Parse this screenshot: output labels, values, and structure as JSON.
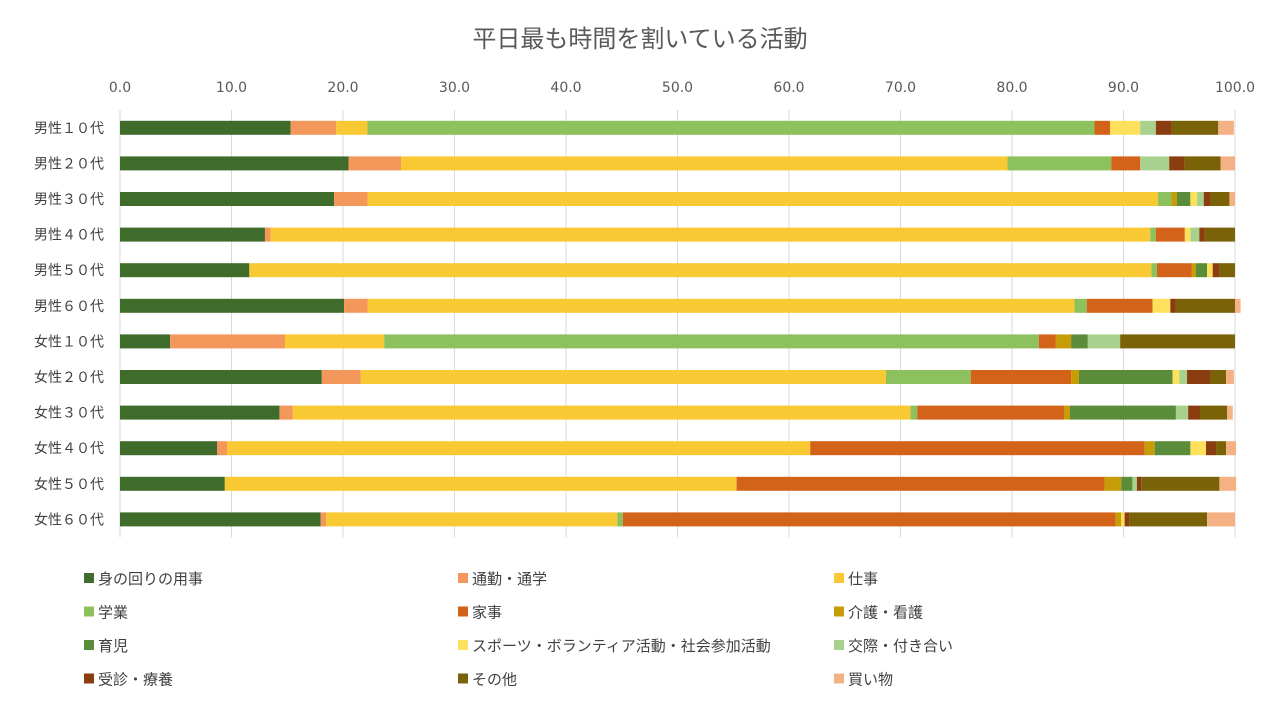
{
  "chart_data": {
    "type": "bar",
    "orientation": "horizontal",
    "stacked": true,
    "title": "平日最も時間を割いている活動",
    "xlim": [
      0,
      100
    ],
    "xticks": [
      "0.0",
      "10.0",
      "20.0",
      "30.0",
      "40.0",
      "50.0",
      "60.0",
      "70.0",
      "80.0",
      "90.0",
      "100.0"
    ],
    "xaxis_position": "top",
    "grid": true,
    "legend_position": "bottom",
    "categories": [
      "男性１０代",
      "男性２０代",
      "男性３０代",
      "男性４０代",
      "男性５０代",
      "男性６０代",
      "女性１０代",
      "女性２０代",
      "女性３０代",
      "女性４０代",
      "女性５０代",
      "女性６０代"
    ],
    "series": [
      {
        "name": "身の回りの用事",
        "color": "#3f6b2b",
        "values": [
          15.3,
          20.5,
          19.2,
          13.0,
          11.6,
          20.1,
          4.5,
          18.1,
          14.3,
          8.7,
          9.4,
          18.0
        ]
      },
      {
        "name": "通勤・通学",
        "color": "#f4975b",
        "values": [
          4.1,
          4.7,
          3.0,
          0.5,
          0.0,
          2.1,
          10.3,
          3.5,
          1.2,
          0.9,
          0.0,
          0.5
        ]
      },
      {
        "name": "仕事",
        "color": "#f9c933",
        "values": [
          2.8,
          54.4,
          70.9,
          78.9,
          80.9,
          63.4,
          8.9,
          47.1,
          55.4,
          52.3,
          45.9,
          26.1
        ]
      },
      {
        "name": "学業",
        "color": "#8cc15e",
        "values": [
          65.2,
          9.3,
          1.2,
          0.5,
          0.5,
          1.1,
          58.7,
          7.6,
          0.6,
          0.0,
          0.0,
          0.5
        ]
      },
      {
        "name": "家事",
        "color": "#d4631a",
        "values": [
          1.4,
          2.6,
          0.0,
          2.6,
          3.1,
          5.9,
          1.5,
          9.0,
          13.2,
          30.0,
          33.0,
          44.2
        ]
      },
      {
        "name": "介護・看護",
        "color": "#c79d07",
        "values": [
          0.0,
          0.0,
          0.5,
          0.0,
          0.4,
          0.0,
          1.4,
          0.7,
          0.5,
          0.9,
          1.5,
          0.5
        ]
      },
      {
        "name": "育児",
        "color": "#5a8c3a",
        "values": [
          0.0,
          0.0,
          1.2,
          0.0,
          1.0,
          0.0,
          1.5,
          8.4,
          9.5,
          3.2,
          1.0,
          0.0
        ]
      },
      {
        "name": "スポーツ・ボランティア活動・社会参加活動",
        "color": "#fde15c",
        "values": [
          2.7,
          0.0,
          0.6,
          0.5,
          0.5,
          1.6,
          0.0,
          0.6,
          0.0,
          1.4,
          0.0,
          0.3
        ]
      },
      {
        "name": "交際・付き合い",
        "color": "#a9d18e",
        "values": [
          1.4,
          2.6,
          0.6,
          0.8,
          0.0,
          0.0,
          2.9,
          0.7,
          1.1,
          0.0,
          0.4,
          0.0
        ]
      },
      {
        "name": "受診・療養",
        "color": "#8a3e0f",
        "values": [
          1.4,
          1.4,
          0.6,
          0.5,
          0.6,
          0.5,
          0.0,
          2.1,
          1.1,
          0.9,
          0.4,
          0.4
        ]
      },
      {
        "name": "その他",
        "color": "#7a6208",
        "values": [
          4.2,
          3.2,
          1.7,
          2.7,
          1.4,
          5.3,
          10.3,
          1.4,
          2.4,
          0.9,
          7.0,
          7.0
        ]
      },
      {
        "name": "買い物",
        "color": "#f4b183",
        "values": [
          1.4,
          1.3,
          0.5,
          0.0,
          0.0,
          0.5,
          0.0,
          0.7,
          0.5,
          0.9,
          1.5,
          2.5
        ]
      }
    ]
  }
}
